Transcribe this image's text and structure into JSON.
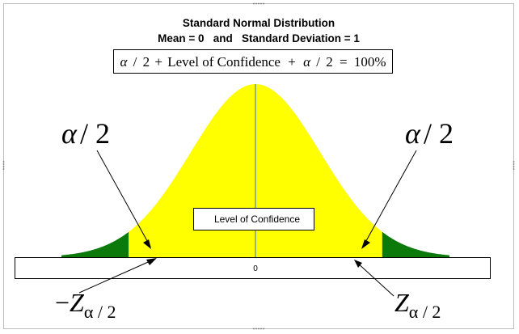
{
  "title": {
    "line1": "Standard Normal Distribution",
    "line2": "Mean = 0   and   Standard Deviation = 1"
  },
  "formula": {
    "alpha": "α",
    "slash": "/",
    "two": "2",
    "plus1": "+",
    "loc": "Level of Confidence",
    "plus2": "+",
    "equals": "=",
    "hundred": "100%"
  },
  "left_tail_label": {
    "alpha": "α",
    "rest": "/ 2"
  },
  "right_tail_label": {
    "alpha": "α",
    "rest": "/ 2"
  },
  "center_box_label": "Level of Confidence",
  "axis_zero": "0",
  "left_crit": {
    "minus": "−",
    "z": "Z",
    "sub": "α / 2"
  },
  "right_crit": {
    "z": "Z",
    "sub": "α / 2"
  },
  "colors": {
    "body_fill": "#ffff00",
    "tail_fill": "#0b7a0b",
    "border": "#bdbdbd",
    "line": "#000000",
    "center_line": "#4f81bd"
  },
  "chart_data": {
    "type": "area",
    "distribution": "standard normal",
    "mean": 0,
    "sd": 1,
    "xlim": [
      -3,
      3
    ],
    "critical_z": 1.96,
    "regions": [
      {
        "region": "left-tail",
        "x_range": [
          -3,
          -1.96
        ]
      },
      {
        "region": "center",
        "x_range": [
          -1.96,
          1.96
        ]
      },
      {
        "region": "right-tail",
        "x_range": [
          1.96,
          3
        ]
      }
    ]
  }
}
